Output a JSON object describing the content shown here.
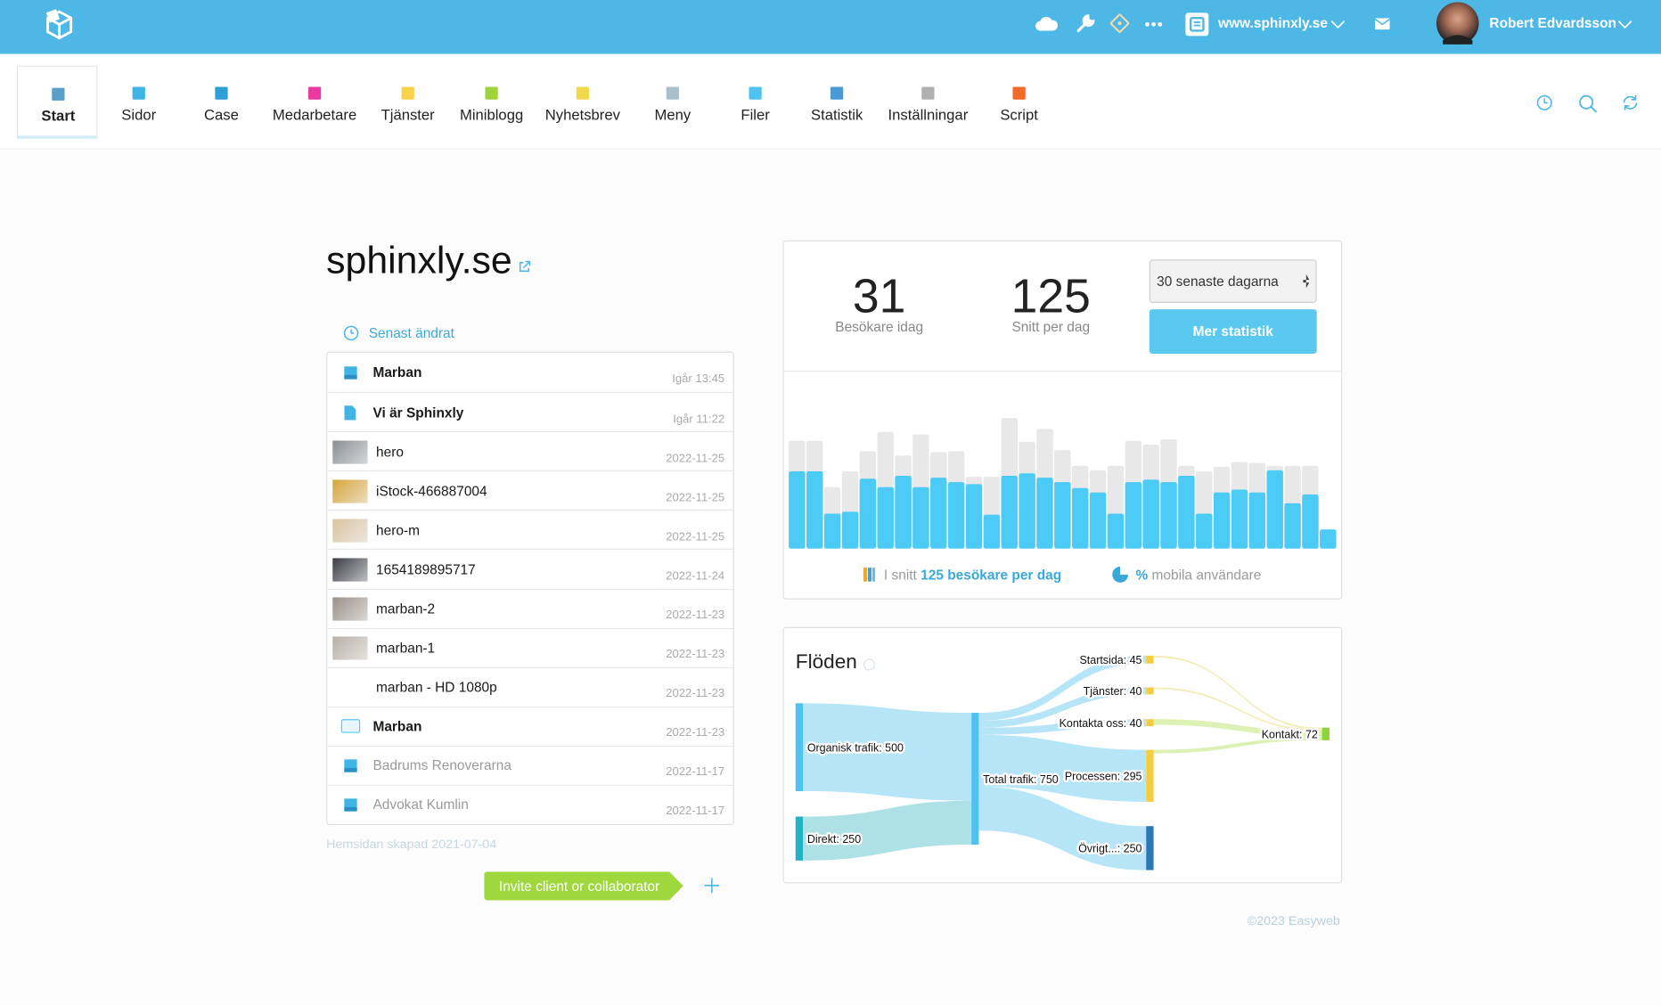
{
  "header": {
    "site": "www.sphinxly.se",
    "user": "Robert Edvardsson"
  },
  "nav": [
    {
      "label": "Start",
      "color": "#5a9fc9",
      "active": true
    },
    {
      "label": "Sidor",
      "color": "#3fb4e5"
    },
    {
      "label": "Case",
      "color": "#2ea0d8"
    },
    {
      "label": "Medarbetare",
      "color": "#e83aa0"
    },
    {
      "label": "Tjänster",
      "color": "#f7d24a"
    },
    {
      "label": "Miniblogg",
      "color": "#9ed33e"
    },
    {
      "label": "Nyhetsbrev",
      "color": "#f0d94a"
    },
    {
      "label": "Meny",
      "color": "#a8c0cc"
    },
    {
      "label": "Filer",
      "color": "#4ec3ef"
    },
    {
      "label": "Statistik",
      "color": "#4a9ad8"
    },
    {
      "label": "Inställningar",
      "color": "#b0b0b0"
    },
    {
      "label": "Script",
      "color": "#f26a2a"
    }
  ],
  "site": {
    "title": "sphinxly.se",
    "recent_heading": "Senast ändrat",
    "items": [
      {
        "name": "Marban",
        "date": "Igår 13:45",
        "icon": "square",
        "color": "#3fb4e5"
      },
      {
        "name": "Vi är Sphinxly",
        "date": "Igår 11:22",
        "icon": "doc",
        "color": "#3fb4e5"
      },
      {
        "name": "hero",
        "date": "2022-11-25",
        "icon": "image",
        "color": "#8a8f94"
      },
      {
        "name": "iStock-466887004",
        "date": "2022-11-25",
        "icon": "image",
        "color": "#d6a53a"
      },
      {
        "name": "hero-m",
        "date": "2022-11-25",
        "icon": "image",
        "color": "#d9c3a0"
      },
      {
        "name": "1654189895717",
        "date": "2022-11-24",
        "icon": "image",
        "color": "#3a3c44"
      },
      {
        "name": "marban-2",
        "date": "2022-11-23",
        "icon": "image",
        "color": "#9a9088"
      },
      {
        "name": "marban-1",
        "date": "2022-11-23",
        "icon": "image",
        "color": "#b8b0a8"
      },
      {
        "name": "marban - HD 1080p",
        "date": "2022-11-23",
        "icon": "none"
      },
      {
        "name": "Marban",
        "date": "2022-11-23",
        "icon": "folder",
        "color": "#5cc6ef"
      },
      {
        "name": "Badrums Renoverarna",
        "date": "2022-11-17",
        "icon": "square",
        "color": "#3fb4e5",
        "muted": true
      },
      {
        "name": "Advokat Kumlin",
        "date": "2022-11-17",
        "icon": "square",
        "color": "#3fb4e5",
        "muted": true
      }
    ],
    "created": "Hemsidan skapad 2021-07-04",
    "invite": "Invite client or collaborator"
  },
  "stats": {
    "visitors_today": "31",
    "visitors_today_label": "Besökare idag",
    "average": "125",
    "average_label": "Snitt per dag",
    "period": "30 senaste dagarna",
    "button": "Mer statistik",
    "summary_prefix": "I snitt",
    "summary_value": "125 besökare per dag",
    "mobile_value": "%",
    "mobile_label": "mobila användare"
  },
  "chart_data": [
    {
      "type": "bar",
      "series": [
        {
          "color": "#e8e8e8",
          "values": [
            219,
            219,
            125,
            157,
            198,
            237,
            189,
            232,
            196,
            198,
            146,
            146,
            265,
            217,
            243,
            200,
            168,
            159,
            168,
            219,
            211,
            222,
            168,
            157,
            166,
            176,
            174,
            168,
            168,
            168,
            39
          ]
        },
        {
          "color": "#4ccbf6",
          "values": [
            157,
            157,
            71,
            75,
            142,
            125,
            148,
            125,
            144,
            135,
            131,
            69,
            148,
            153,
            144,
            135,
            123,
            114,
            71,
            135,
            140,
            135,
            148,
            71,
            114,
            120,
            114,
            159,
            92,
            110,
            39
          ]
        }
      ]
    },
    {
      "type": "sankey",
      "title": "Flöden",
      "nodes": [
        {
          "label": "Organisk trafik: 500",
          "value": 500,
          "color": "#4ec3ef"
        },
        {
          "label": "Direkt: 250",
          "value": 250,
          "color": "#24b3c4"
        },
        {
          "label": "Total trafik: 750",
          "value": 750,
          "color": "#4ec3ef"
        },
        {
          "label": "Startsida: 45",
          "value": 45,
          "color": "#f5cc3f"
        },
        {
          "label": "Tjänster: 40",
          "value": 40,
          "color": "#f5cc3f"
        },
        {
          "label": "Kontakta oss: 40",
          "value": 40,
          "color": "#f5cc3f"
        },
        {
          "label": "Processen: 295",
          "value": 295,
          "color": "#f5cc3f"
        },
        {
          "label": "Övrigt...: 250",
          "value": 250,
          "color": "#2a78b5"
        },
        {
          "label": "Kontakt: 72",
          "value": 72,
          "color": "#8fd33c"
        }
      ],
      "links": [
        {
          "source": 0,
          "target": 2,
          "value": 500,
          "color": "#a9e0f7"
        },
        {
          "source": 1,
          "target": 2,
          "value": 250,
          "color": "#9fdce2"
        },
        {
          "source": 2,
          "target": 3,
          "value": 45,
          "color": "#a9e0f7"
        },
        {
          "source": 2,
          "target": 4,
          "value": 40,
          "color": "#a9e0f7"
        },
        {
          "source": 2,
          "target": 5,
          "value": 40,
          "color": "#a9e0f7"
        },
        {
          "source": 2,
          "target": 6,
          "value": 295,
          "color": "#a9e0f7"
        },
        {
          "source": 2,
          "target": 7,
          "value": 250,
          "color": "#a9e0f7"
        },
        {
          "source": 3,
          "target": 8,
          "value": 10,
          "color": "#f1eab2"
        },
        {
          "source": 4,
          "target": 8,
          "value": 10,
          "color": "#f1eab2"
        },
        {
          "source": 5,
          "target": 8,
          "value": 32,
          "color": "#d7eea8"
        },
        {
          "source": 6,
          "target": 8,
          "value": 20,
          "color": "#d7eea8"
        }
      ]
    }
  ],
  "footer": "©2023 Easyweb"
}
